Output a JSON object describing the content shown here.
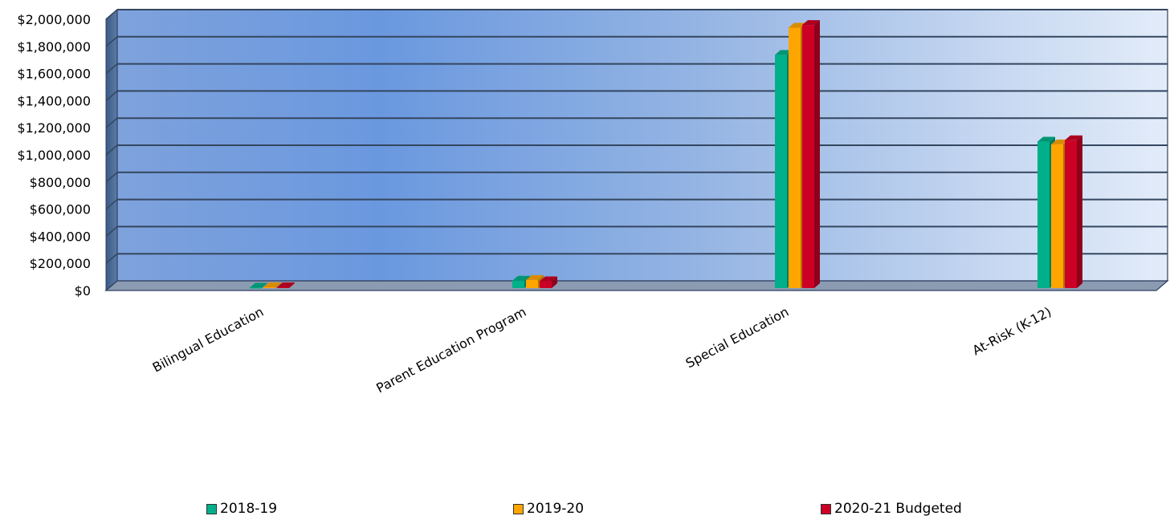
{
  "chart_data": {
    "type": "bar",
    "title": "",
    "xlabel": "",
    "ylabel": "",
    "ylim": [
      0,
      2000000
    ],
    "y_ticks": [
      "$0",
      "$200,000",
      "$400,000",
      "$600,000",
      "$800,000",
      "$1,000,000",
      "$1,200,000",
      "$1,400,000",
      "$1,600,000",
      "$1,800,000",
      "$2,000,000"
    ],
    "categories": [
      "Bilingual Education",
      "Parent Education Program",
      "Special Education",
      "At-Risk (K-12)"
    ],
    "series": [
      {
        "name": "2018-19",
        "color": "#00b08a",
        "values": [
          3000,
          55000,
          1720000,
          1080000
        ]
      },
      {
        "name": "2019-20",
        "color": "#ffa500",
        "values": [
          6000,
          60000,
          1920000,
          1060000
        ]
      },
      {
        "name": "2020-21 Budgeted",
        "color": "#cc0025",
        "values": [
          6000,
          50000,
          1940000,
          1090000
        ]
      }
    ],
    "grid": true,
    "legend_position": "bottom"
  }
}
